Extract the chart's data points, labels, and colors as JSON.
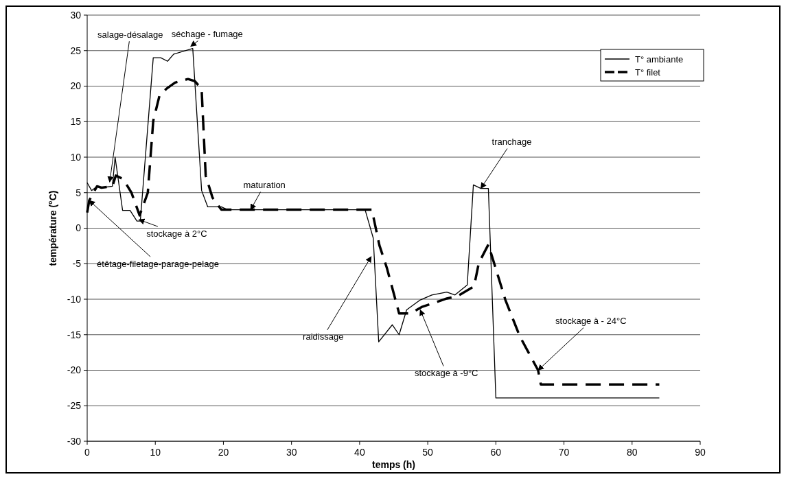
{
  "chart_data": {
    "type": "line",
    "xlabel": "temps (h)",
    "ylabel": "température (°C)",
    "xlim": [
      0,
      90
    ],
    "xticks": [
      0,
      10,
      20,
      30,
      40,
      50,
      60,
      70,
      80,
      90
    ],
    "ylim": [
      -30,
      30
    ],
    "yticks": [
      -30,
      -25,
      -20,
      -15,
      -10,
      -5,
      0,
      5,
      10,
      15,
      20,
      25,
      30
    ],
    "grid": "y",
    "legend": "top right",
    "series": [
      {
        "name": "T° ambiante",
        "color": "#000000",
        "line_style": "solid",
        "x": [
          0,
          0.65,
          1.45,
          2.1,
          3.7,
          4.1,
          5.2,
          6.3,
          7.3,
          7.8,
          9.7,
          10.8,
          11.8,
          12.7,
          15.5,
          16.8,
          17.7,
          19.7,
          20.6,
          40.8,
          42,
          42.8,
          44.8,
          45.8,
          46.9,
          48.9,
          50.6,
          52.8,
          54,
          55.8,
          56.7,
          57.8,
          58.9,
          60,
          84
        ],
        "values": [
          6.4,
          5.3,
          5.9,
          5.7,
          5.9,
          10,
          2.5,
          2.5,
          1,
          1,
          24,
          24,
          23.5,
          24.5,
          25.3,
          5.3,
          3,
          3,
          2.6,
          2.6,
          -1.4,
          -16,
          -13.6,
          -15,
          -11.5,
          -10.1,
          -9.4,
          -9,
          -9.4,
          -8,
          6.1,
          5.6,
          5.6,
          -23.9,
          -23.9
        ]
      },
      {
        "name": "T° filet",
        "color": "#000000",
        "line_style": "dashed",
        "x": [
          0,
          0.3,
          1.45,
          2.1,
          3.7,
          4.2,
          5.3,
          6.5,
          7.7,
          8.9,
          9.7,
          10.6,
          11.6,
          12.9,
          14.8,
          15.8,
          16.8,
          17.4,
          18.4,
          19.7,
          41.8,
          42.9,
          44,
          45.8,
          47.5,
          49.1,
          51,
          52.8,
          54.3,
          56.8,
          57.5,
          58.9,
          61.4,
          63.5,
          66.2,
          66.6,
          84
        ],
        "values": [
          2.2,
          3.9,
          5.9,
          5.7,
          5.9,
          7.4,
          6.9,
          5,
          1.8,
          5,
          15.1,
          18.6,
          19.6,
          20.5,
          21,
          20.7,
          19.6,
          7.4,
          4.3,
          2.6,
          2.6,
          -2.4,
          -5.6,
          -12,
          -12,
          -11.1,
          -10.5,
          -9.9,
          -9.6,
          -8.2,
          -4.9,
          -2.3,
          -10.1,
          -15.2,
          -20,
          -22,
          -22
        ]
      }
    ],
    "annotations": [
      {
        "text": "salage-désalage",
        "x": 3.3,
        "y": 6.5
      },
      {
        "text": "séchage - fumage",
        "x": 15.2,
        "y": 25.6
      },
      {
        "text": "maturation",
        "x": 24,
        "y": 2.6
      },
      {
        "text": "stockage à 2°C",
        "x": 7.6,
        "y": 1.2
      },
      {
        "text": "étêtage-filetage-parage-pelage",
        "x": 0.3,
        "y": 3.9
      },
      {
        "text": "raidissage",
        "x": 41.7,
        "y": -4
      },
      {
        "text": "stockage à -9°C",
        "x": 48.9,
        "y": -11.5
      },
      {
        "text": "tranchage",
        "x": 57.8,
        "y": 5.6
      },
      {
        "text": "stockage à - 24°C",
        "x": 66.2,
        "y": -20
      }
    ]
  }
}
